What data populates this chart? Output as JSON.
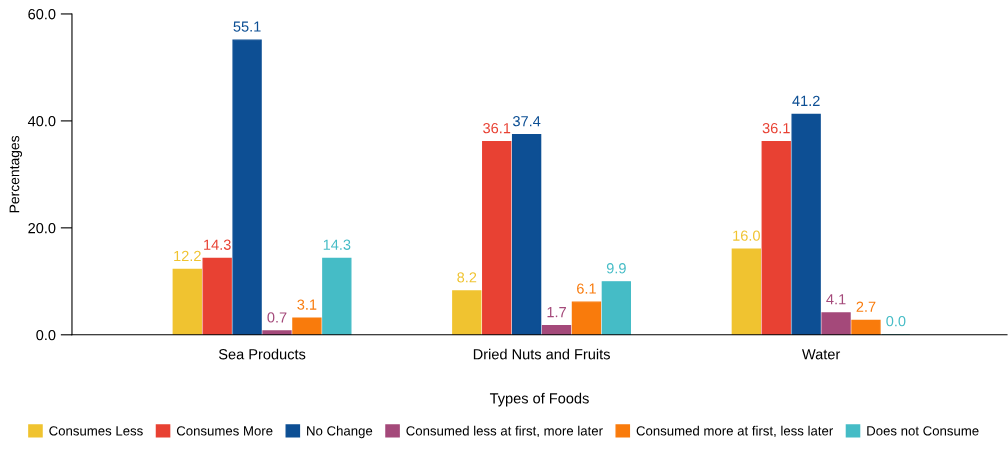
{
  "chart_data": {
    "type": "bar",
    "xlabel": "Types of Foods",
    "ylabel": "Percentages",
    "categories": [
      "Sea Products",
      "Dried Nuts and Fruits",
      "Water"
    ],
    "series": [
      {
        "name": "Consumes Less",
        "color": "#f0c330",
        "values": [
          12.2,
          8.2,
          16.0
        ],
        "value_labels": [
          "12.2",
          "8.2",
          "16.0"
        ]
      },
      {
        "name": "Consumes More",
        "color": "#e84133",
        "values": [
          14.3,
          36.1,
          36.1
        ],
        "value_labels": [
          "14.3",
          "36.1",
          "36.1"
        ]
      },
      {
        "name": "No Change",
        "color": "#0d4f94",
        "values": [
          55.1,
          37.4,
          41.2
        ],
        "value_labels": [
          "55.1",
          "37.4",
          "41.2"
        ]
      },
      {
        "name": "Consumed less at first, more later",
        "color": "#a4497a",
        "values": [
          0.7,
          1.7,
          4.1
        ],
        "value_labels": [
          "0.7",
          "1.7",
          "4.1"
        ]
      },
      {
        "name": "Consumed more at first, less later",
        "color": "#f97b0c",
        "values": [
          3.1,
          6.1,
          2.7
        ],
        "value_labels": [
          "3.1",
          "6.1",
          "2.7"
        ]
      },
      {
        "name": "Does not Consume",
        "color": "#45bcc6",
        "values": [
          14.3,
          9.9,
          0.0
        ],
        "value_labels": [
          "14.3",
          "9.9",
          "0.0"
        ]
      }
    ],
    "ylim": [
      0,
      60
    ],
    "yticks": [
      {
        "value": 0,
        "label": "0.0"
      },
      {
        "value": 20,
        "label": "20.0"
      },
      {
        "value": 40,
        "label": "40.0"
      },
      {
        "value": 60,
        "label": "60.0"
      }
    ],
    "grid": false,
    "legend": "bottom"
  }
}
